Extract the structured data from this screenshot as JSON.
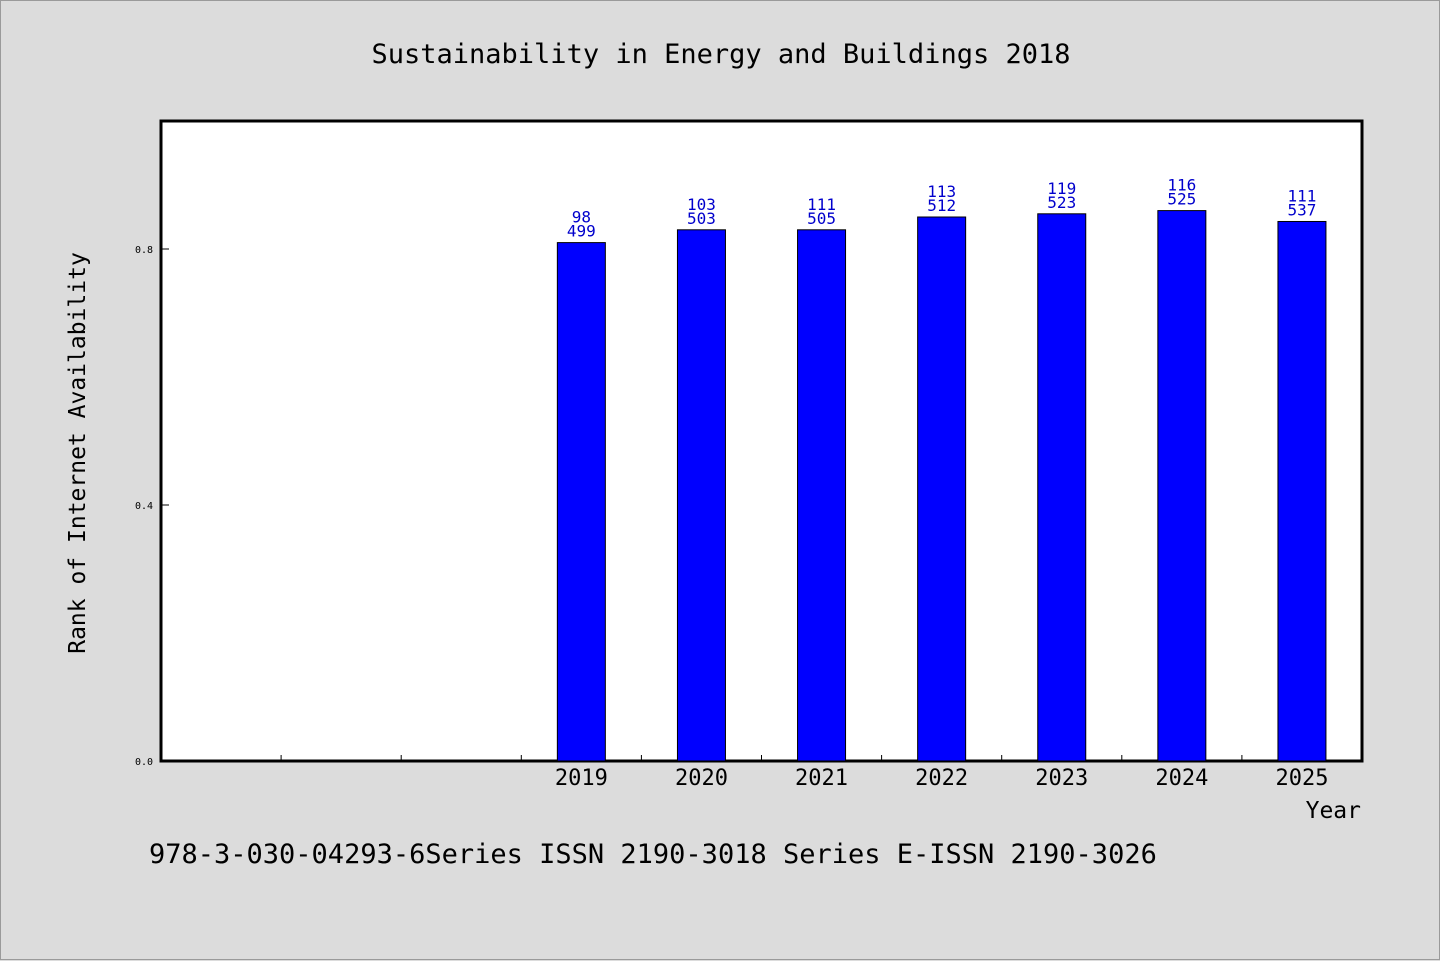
{
  "chart_data": {
    "type": "bar",
    "title": "Sustainability in Energy and Buildings 2018",
    "xlabel": "Year",
    "ylabel": "Rank of Internet Availability",
    "footer": "978-3-030-04293-6Series ISSN 2190-3018 Series E-ISSN 2190-3026",
    "ylim": [
      0.0,
      1.0
    ],
    "yticks": [
      "0.0",
      "0.4",
      "0.8"
    ],
    "categories": [
      "",
      "",
      "",
      "2019",
      "2020",
      "2021",
      "2022",
      "2023",
      "2024",
      "2025"
    ],
    "values": [
      null,
      null,
      null,
      0.81,
      0.83,
      0.83,
      0.85,
      0.855,
      0.86,
      0.843
    ],
    "label_top": [
      null,
      null,
      null,
      "98",
      "103",
      "111",
      "113",
      "119",
      "116",
      "111"
    ],
    "label_bottom": [
      null,
      null,
      null,
      "499",
      "503",
      "505",
      "512",
      "523",
      "525",
      "537"
    ],
    "bar_color": "#0000ff",
    "label_color": "#0000cc",
    "background_color": "#dcdcdc",
    "plot_color": "#ffffff",
    "grid": false,
    "legend": "none"
  }
}
